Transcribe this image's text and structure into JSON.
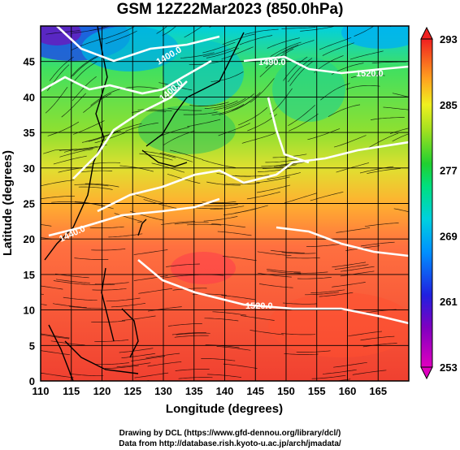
{
  "title": "GSM 12Z22Mar2023 (850.0hPa)",
  "xaxis": {
    "label": "Longitude (degrees)",
    "ticks": [
      "110",
      "115",
      "120",
      "125",
      "130",
      "135",
      "140",
      "145",
      "150",
      "155",
      "160",
      "165"
    ],
    "range": [
      110,
      170
    ]
  },
  "yaxis": {
    "label": "Latitude (degrees)",
    "ticks": [
      "0",
      "5",
      "10",
      "15",
      "20",
      "25",
      "30",
      "35",
      "40",
      "45"
    ],
    "range": [
      0,
      50
    ]
  },
  "colorbar": {
    "labels": [
      "293",
      "285",
      "277",
      "269",
      "261",
      "253"
    ],
    "min": 253,
    "max": 293,
    "colors": [
      "#d000d0",
      "#4000c0",
      "#0040ff",
      "#00c0f0",
      "#00e0a0",
      "#00d040",
      "#60e020",
      "#e0e020",
      "#ffa020",
      "#ff6030",
      "#f02020"
    ]
  },
  "contour_labels": [
    "1400.0",
    "1400.0",
    "1490.0",
    "1520.0",
    "1440.0",
    "1520.0"
  ],
  "credits": {
    "line1": "Drawing by DCL (https://www.gfd-dennou.org/library/dcl/)",
    "line2": "Data from http://database.rish.kyoto-u.ac.jp/arch/jmadata/"
  }
}
